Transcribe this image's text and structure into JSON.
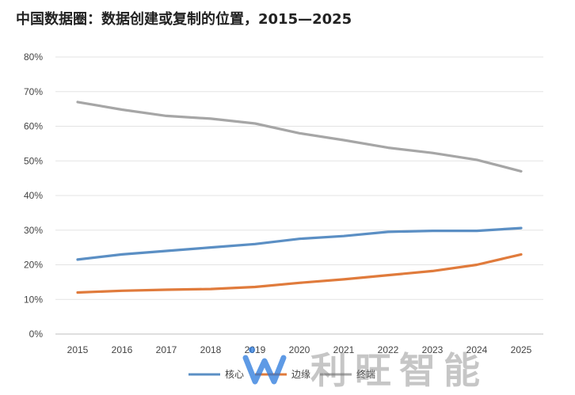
{
  "chart_data": {
    "type": "line",
    "title": "中国数据圈：数据创建或复制的位置，2015—2025",
    "xlabel": "",
    "ylabel": "",
    "categories": [
      "2015",
      "2016",
      "2017",
      "2018",
      "2019",
      "2020",
      "2021",
      "2022",
      "2023",
      "2024",
      "2025"
    ],
    "y_ticks": [
      "0%",
      "10%",
      "20%",
      "30%",
      "40%",
      "50%",
      "60%",
      "70%",
      "80%"
    ],
    "ylim": [
      0,
      80
    ],
    "grid": true,
    "legend_position": "bottom",
    "series": [
      {
        "name": "核心",
        "color": "#5b8fc4",
        "values": [
          21.5,
          23,
          24,
          25,
          26,
          27.5,
          28.3,
          29.5,
          29.8,
          29.8,
          30.6
        ]
      },
      {
        "name": "边缘",
        "color": "#e07b3c",
        "values": [
          12,
          12.5,
          12.8,
          13,
          13.6,
          14.8,
          15.8,
          17,
          18.2,
          20,
          23
        ]
      },
      {
        "name": "终端",
        "color": "#a6a6a6",
        "values": [
          67,
          64.8,
          63,
          62.2,
          60.8,
          58,
          56,
          53.8,
          52.3,
          50.3,
          47
        ]
      }
    ]
  },
  "watermark": {
    "text": "利旺智能"
  }
}
